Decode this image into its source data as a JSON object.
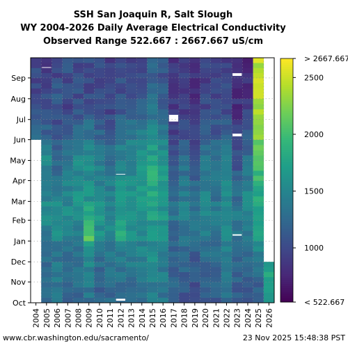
{
  "chart_data": {
    "type": "heatmap",
    "title_lines": [
      "SSH San Joaquin R, Salt Slough",
      "WY 2004-2026 Daily Average Electrical Conductivity",
      "Observed Range 522.667 : 2667.667 uS/cm"
    ],
    "x_categories": [
      "2004",
      "2005",
      "2006",
      "2007",
      "2008",
      "2009",
      "2010",
      "2011",
      "2012",
      "2013",
      "2014",
      "2015",
      "2016",
      "2017",
      "2018",
      "2019",
      "2020",
      "2021",
      "2022",
      "2023",
      "2024",
      "2025",
      "2026"
    ],
    "y_ticks": [
      "Oct",
      "Nov",
      "Dec",
      "Jan",
      "Feb",
      "Mar",
      "Apr",
      "May",
      "Jun",
      "Jul",
      "Aug",
      "Sep"
    ],
    "units": "uS/cm",
    "colorbar": {
      "min": 522.667,
      "max": 2667.667,
      "ticks": [
        1000,
        1500,
        2000,
        2500
      ],
      "over_label": "> 2667.667",
      "under_label": "< 522.667",
      "palette": [
        "#440154",
        "#482878",
        "#3e4989",
        "#31688e",
        "#26828e",
        "#1f9e89",
        "#35b779",
        "#6ece58",
        "#b5de2b",
        "#fde725"
      ]
    },
    "monthly_mean_ec": {
      "columns": [
        "Oct",
        "Nov",
        "Dec",
        "Jan",
        "Feb",
        "Mar",
        "Apr",
        "May",
        "Jun",
        "Jul",
        "Aug",
        "Sep"
      ],
      "rows": {
        "2004": [
          null,
          null,
          null,
          null,
          null,
          null,
          null,
          null,
          1200,
          1050,
          950,
          1000
        ],
        "2005": [
          1250,
          1250,
          1300,
          1350,
          1650,
          1450,
          1500,
          1550,
          1200,
          1050,
          1000,
          950
        ],
        "2006": [
          1350,
          1400,
          1350,
          1500,
          1700,
          1400,
          1300,
          1150,
          1050,
          1050,
          1150,
          1000
        ],
        "2007": [
          1200,
          1250,
          1300,
          1400,
          1550,
          1500,
          1400,
          1350,
          1200,
          1000,
          1000,
          1050
        ],
        "2008": [
          1250,
          1300,
          1250,
          1450,
          1550,
          1600,
          1550,
          1500,
          1300,
          1100,
          1050,
          1000
        ],
        "2009": [
          1300,
          1500,
          1500,
          2150,
          1800,
          1600,
          1550,
          1600,
          1350,
          1100,
          1050,
          1000
        ],
        "2010": [
          1200,
          1250,
          1300,
          1550,
          1700,
          1500,
          1450,
          1400,
          1200,
          1050,
          1000,
          1000
        ],
        "2011": [
          1250,
          1300,
          1300,
          1500,
          1550,
          1450,
          1350,
          1300,
          1150,
          1000,
          950,
          950
        ],
        "2012": [
          1300,
          1350,
          1350,
          1800,
          1750,
          1650,
          1550,
          1500,
          1350,
          1150,
          1050,
          1000
        ],
        "2013": [
          1250,
          1350,
          1450,
          1550,
          1700,
          1600,
          1550,
          1500,
          1350,
          1150,
          1050,
          1000
        ],
        "2014": [
          1300,
          1350,
          1450,
          1550,
          1650,
          1700,
          1700,
          1650,
          1450,
          1250,
          1150,
          1050
        ],
        "2015": [
          1400,
          1450,
          1550,
          1600,
          1700,
          1800,
          1850,
          1750,
          1550,
          1350,
          1250,
          1200
        ],
        "2016": [
          1350,
          1400,
          1450,
          1550,
          1650,
          1600,
          1650,
          1550,
          1450,
          1250,
          1150,
          1100
        ],
        "2017": [
          1250,
          1200,
          1200,
          1250,
          1350,
          1200,
          1100,
          1000,
          950,
          900,
          850,
          850
        ],
        "2018": [
          1050,
          1150,
          1250,
          1300,
          1450,
          1400,
          1350,
          1250,
          1100,
          950,
          900,
          900
        ],
        "2019": [
          1050,
          1100,
          1150,
          1300,
          1350,
          1250,
          1150,
          1050,
          950,
          900,
          850,
          850
        ],
        "2020": [
          1100,
          1200,
          1300,
          1400,
          1500,
          1450,
          1400,
          1350,
          1150,
          1000,
          950,
          950
        ],
        "2021": [
          1150,
          1200,
          1250,
          1350,
          1450,
          1300,
          1350,
          1300,
          1150,
          1000,
          950,
          900
        ],
        "2022": [
          1300,
          1350,
          1400,
          1500,
          1550,
          1500,
          1450,
          1400,
          1250,
          1050,
          1000,
          950
        ],
        "2023": [
          1150,
          1200,
          1250,
          1350,
          1400,
          1300,
          1150,
          1050,
          950,
          850,
          800,
          800
        ],
        "2024": [
          1050,
          1150,
          1250,
          1350,
          1450,
          1500,
          1400,
          1300,
          1100,
          950,
          850,
          800
        ],
        "2025": [
          1150,
          1250,
          1450,
          1650,
          1750,
          1800,
          1950,
          2150,
          2250,
          2350,
          2400,
          2450
        ],
        "2026": [
          1700,
          1750,
          null,
          null,
          null,
          null,
          null,
          null,
          null,
          null,
          null,
          null
        ]
      }
    }
  },
  "footer": {
    "source": "www.cbr.washington.edu/sacramento/",
    "timestamp": "23 Nov 2025 15:48:38 PST"
  }
}
